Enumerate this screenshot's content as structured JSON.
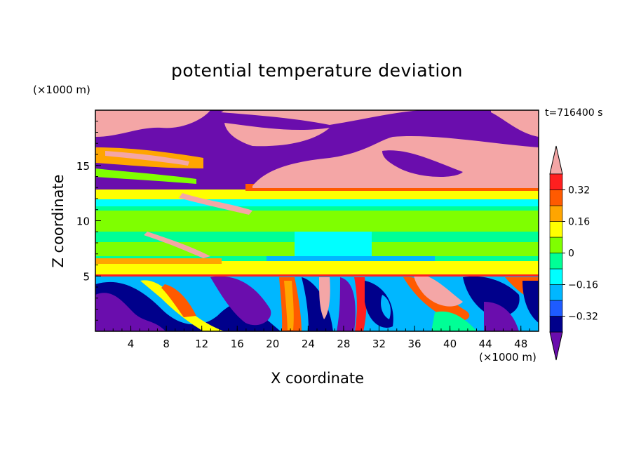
{
  "chart_data": {
    "type": "heatmap",
    "title": "potential temperature deviation",
    "xlabel": "X coordinate",
    "ylabel": "Z coordinate",
    "x_unit": "(×1000 m)",
    "y_unit": "(×1000 m)",
    "time_label": "t=716400 s",
    "xlim": [
      0,
      50
    ],
    "ylim": [
      0,
      20
    ],
    "x_ticks": [
      4,
      8,
      12,
      16,
      20,
      24,
      28,
      32,
      36,
      40,
      44,
      48
    ],
    "y_ticks": [
      5,
      10,
      15
    ],
    "colorbar": {
      "levels": [
        -0.4,
        -0.32,
        -0.24,
        -0.16,
        -0.08,
        0,
        0.08,
        0.16,
        0.24,
        0.32,
        0.4
      ],
      "labeled_ticks": [
        -0.32,
        -0.16,
        0,
        0.16,
        0.32
      ],
      "colors": [
        "#6a0dad",
        "#00008b",
        "#1e5bff",
        "#00b7ff",
        "#00ffff",
        "#00ff96",
        "#7fff00",
        "#ffff00",
        "#ffa500",
        "#ff5a00",
        "#ff1f1f",
        "#f4a6a6"
      ],
      "extend": "both"
    },
    "layers": [
      {
        "z": [
          13,
          20
        ],
        "description_values": "mixed -0.4 to +0.4, large positive regions upper right"
      },
      {
        "z": [
          5.3,
          13
        ],
        "description_values": "near 0 to +0.08 with -0.08 pockets"
      },
      {
        "z": [
          0,
          5.3
        ],
        "description_values": "strong alternating -0.4 to +0.4 waves"
      }
    ]
  }
}
